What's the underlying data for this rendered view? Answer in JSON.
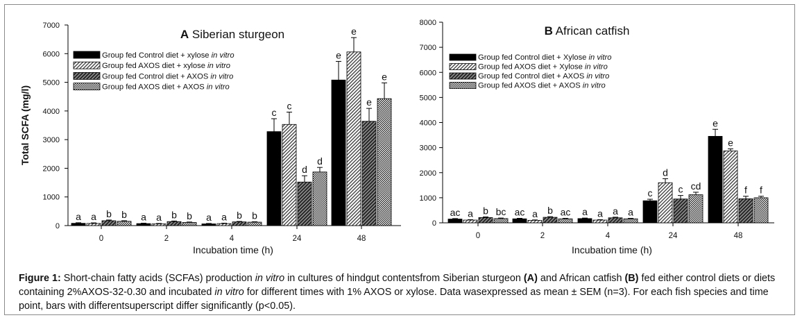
{
  "chart_data": [
    {
      "type": "bar",
      "title_letter": "A",
      "title_text": "Siberian sturgeon",
      "xlabel": "Incubation time (h)",
      "ylabel": "Total SCFA (mg/l)",
      "ylim": [
        0,
        7000
      ],
      "yticks": [
        "0",
        "1000",
        "2000",
        "3000",
        "4000",
        "5000",
        "6000",
        "7000"
      ],
      "categories": [
        "0",
        "2",
        "4",
        "24",
        "48"
      ],
      "legend_position": "top-left",
      "series": [
        {
          "name": "Group fed Control diet + xylose",
          "name_italic": "in vitro",
          "pattern": "solid",
          "values": [
            80,
            70,
            60,
            3280,
            5080
          ],
          "errors": [
            20,
            15,
            15,
            450,
            650
          ],
          "labels": [
            "a",
            "a",
            "a",
            "c",
            "e"
          ]
        },
        {
          "name": "Group fed AXOS diet + xylose",
          "name_italic": "in vitro",
          "pattern": "diag",
          "values": [
            75,
            60,
            70,
            3530,
            6060
          ],
          "errors": [
            20,
            15,
            15,
            430,
            500
          ],
          "labels": [
            "a",
            "a",
            "a",
            "c",
            "e"
          ]
        },
        {
          "name": "Group fed Control diet + AXOS",
          "name_italic": "in vitro",
          "pattern": "dark",
          "values": [
            170,
            140,
            130,
            1520,
            3640
          ],
          "errors": [
            25,
            20,
            15,
            220,
            450
          ],
          "labels": [
            "b",
            "b",
            "b",
            "d",
            "e"
          ]
        },
        {
          "name": "Group fed AXOS diet + AXOS",
          "name_italic": "in vitro",
          "pattern": "check",
          "values": [
            150,
            110,
            120,
            1870,
            4430
          ],
          "errors": [
            20,
            15,
            15,
            160,
            550
          ],
          "labels": [
            "b",
            "b",
            "b",
            "d",
            "e"
          ]
        }
      ]
    },
    {
      "type": "bar",
      "title_letter": "B",
      "title_text": "African catfish",
      "xlabel": "Incubation time (h)",
      "ylabel": "",
      "ylim": [
        0,
        8000
      ],
      "yticks": [
        "0",
        "1000",
        "2000",
        "3000",
        "4000",
        "5000",
        "6000",
        "7000",
        "8000"
      ],
      "categories": [
        "0",
        "2",
        "4",
        "24",
        "48"
      ],
      "legend_position": "top-left",
      "series": [
        {
          "name": "Group fed Control diet + Xylose",
          "name_italic": "in vitro",
          "pattern": "solid",
          "values": [
            150,
            160,
            170,
            880,
            3450
          ],
          "errors": [
            20,
            20,
            20,
            60,
            280
          ],
          "labels": [
            "ac",
            "ac",
            "a",
            "c",
            "e"
          ]
        },
        {
          "name": "Group fed AXOS diet + Xylose",
          "name_italic": "in vitro",
          "pattern": "diag",
          "values": [
            110,
            100,
            110,
            1600,
            2870
          ],
          "errors": [
            15,
            15,
            15,
            160,
            80
          ],
          "labels": [
            "a",
            "a",
            "a",
            "d",
            "e"
          ]
        },
        {
          "name": "Group fed Control diet + AXOS",
          "name_italic": "in vitro",
          "pattern": "dark",
          "values": [
            210,
            220,
            200,
            950,
            960
          ],
          "errors": [
            25,
            25,
            25,
            140,
            100
          ],
          "labels": [
            "b",
            "b",
            "a",
            "c",
            "f"
          ]
        },
        {
          "name": "Group fed AXOS diet + AXOS",
          "name_italic": "in vitro",
          "pattern": "check",
          "values": [
            170,
            160,
            160,
            1120,
            1000
          ],
          "errors": [
            20,
            20,
            20,
            100,
            60
          ],
          "labels": [
            "bc",
            "ac",
            "a",
            "cd",
            "f"
          ]
        }
      ]
    }
  ],
  "caption": {
    "prefix": "Figure 1:",
    "segments": [
      {
        "t": " Short-chain fatty acids (SCFAs) production ",
        "s": "n"
      },
      {
        "t": "in vitro",
        "s": "i"
      },
      {
        "t": " in cultures of hindgut contentsfrom Siberian sturgeon ",
        "s": "n"
      },
      {
        "t": "(A)",
        "s": "b"
      },
      {
        "t": " and African catfish ",
        "s": "n"
      },
      {
        "t": "(B)",
        "s": "b"
      },
      {
        "t": " fed either control diets or diets containing 2%AXOS-32-0.30 and incubated ",
        "s": "n"
      },
      {
        "t": "in vitro",
        "s": "i"
      },
      {
        "t": " for different times with 1% AXOS or xylose. Data wasexpressed as mean ± SEM (n=3). For each fish species and time point, bars with differentsuperscript differ significantly (p<0.05).",
        "s": "n"
      }
    ]
  }
}
